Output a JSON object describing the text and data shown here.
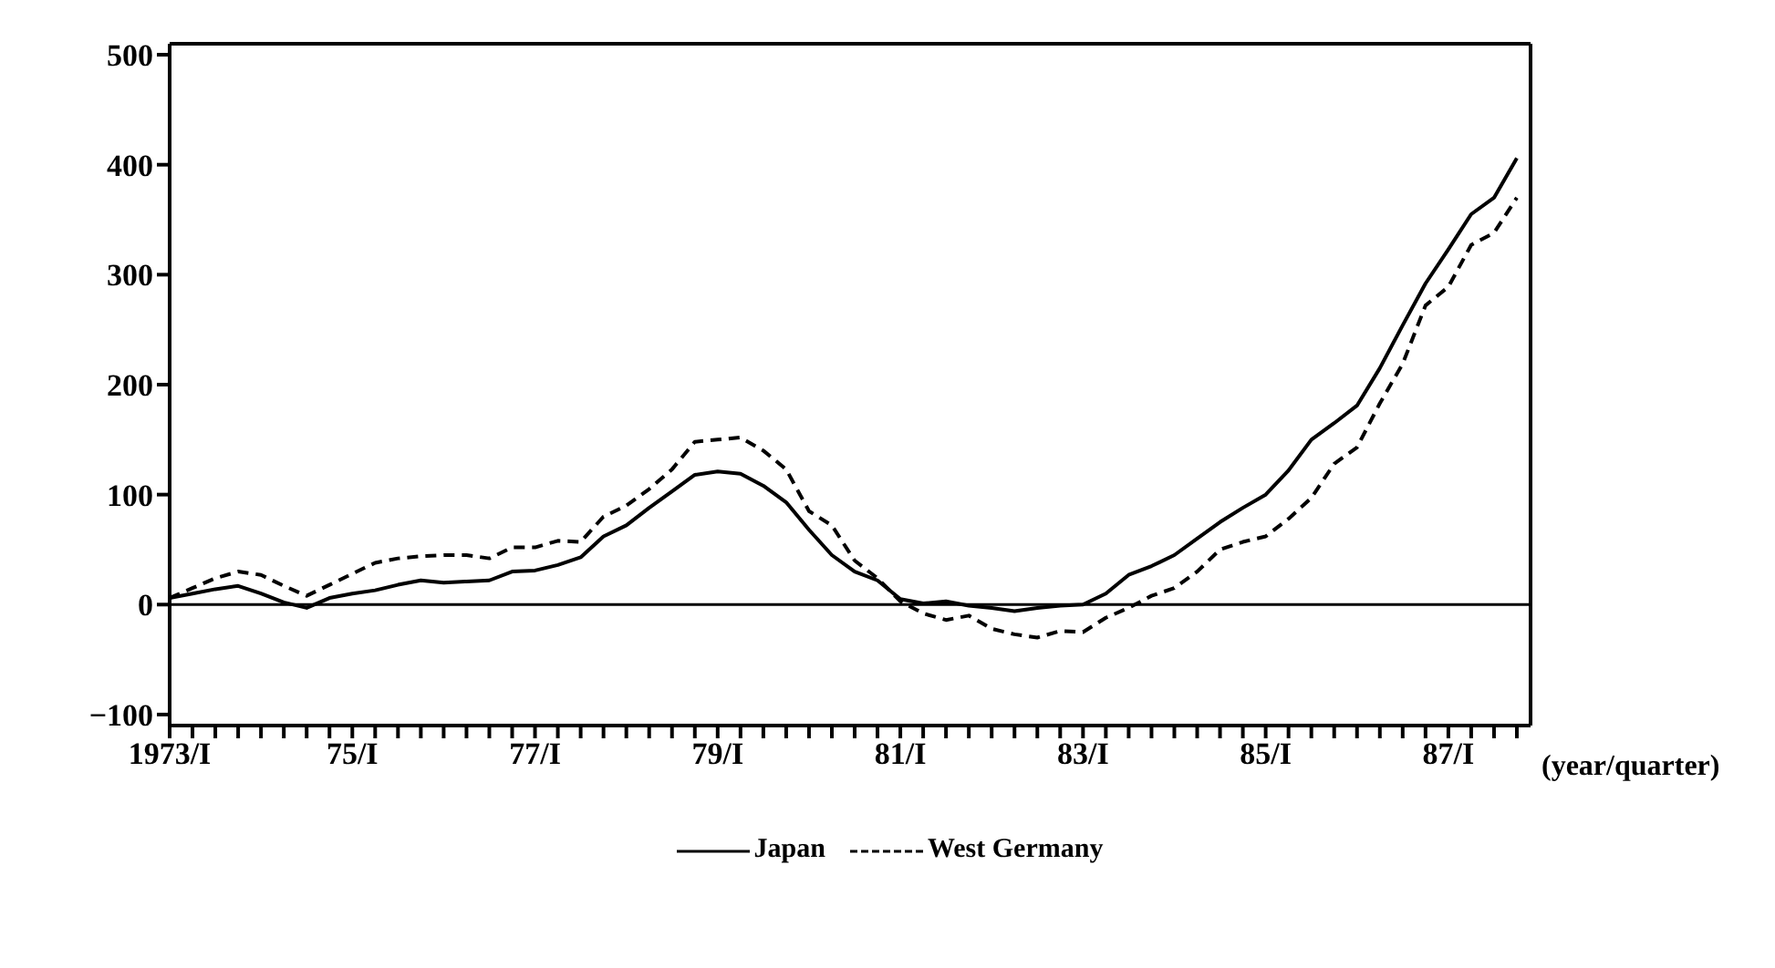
{
  "chart_data": {
    "type": "line",
    "xlabel": "(year/quarter)",
    "categories": [
      "1973/I",
      null,
      null,
      null,
      null,
      null,
      null,
      null,
      "75/I",
      null,
      null,
      null,
      null,
      null,
      null,
      null,
      "77/I",
      null,
      null,
      null,
      null,
      null,
      null,
      null,
      "79/I",
      null,
      null,
      null,
      null,
      null,
      null,
      null,
      "81/I",
      null,
      null,
      null,
      null,
      null,
      null,
      null,
      "83/I",
      null,
      null,
      null,
      null,
      null,
      null,
      null,
      "85/I",
      null,
      null,
      null,
      null,
      null,
      null,
      null,
      "87/I",
      null,
      null,
      null
    ],
    "series": [
      {
        "name": "Japan",
        "color": "#000000",
        "line_style": "solid",
        "values": [
          6,
          10,
          14,
          17,
          10,
          2,
          -3,
          6,
          10,
          13,
          18,
          22,
          20,
          21,
          22,
          30,
          31,
          36,
          43,
          62,
          72,
          88,
          103,
          118,
          121,
          119,
          108,
          93,
          68,
          45,
          30,
          22,
          5,
          1,
          3,
          -1,
          -3,
          -6,
          -3,
          -1,
          0,
          10,
          27,
          35,
          45,
          60,
          75,
          88,
          100,
          122,
          150,
          165,
          181,
          215,
          254,
          292,
          323,
          355,
          370,
          406
        ]
      },
      {
        "name": "West Germany",
        "color": "#000000",
        "line_style": "dashed",
        "values": [
          6,
          15,
          24,
          30,
          27,
          17,
          8,
          18,
          28,
          38,
          42,
          44,
          45,
          45,
          42,
          52,
          52,
          58,
          57,
          80,
          90,
          105,
          123,
          148,
          150,
          152,
          140,
          123,
          85,
          72,
          40,
          24,
          3,
          -8,
          -14,
          -10,
          -22,
          -27,
          -30,
          -24,
          -25,
          -12,
          -3,
          8,
          15,
          30,
          50,
          57,
          62,
          78,
          97,
          128,
          143,
          183,
          219,
          272,
          289,
          327,
          338,
          370
        ]
      }
    ],
    "ylim": [
      -110,
      510
    ],
    "yticks": [
      {
        "value": -100,
        "label": "−100"
      },
      0,
      100,
      200,
      300,
      400,
      500
    ],
    "ref_lines": [
      {
        "axis": "y",
        "value": 0,
        "color": "#000000"
      }
    ],
    "grid": false,
    "legend": "bottom",
    "marker": "none"
  }
}
